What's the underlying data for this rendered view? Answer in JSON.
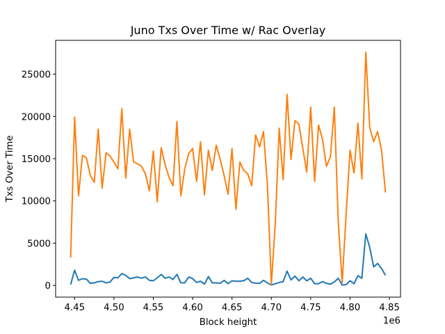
{
  "chart_data": {
    "type": "line",
    "title": "Juno Txs Over Time w/ Rac Overlay",
    "xlabel": "Block height",
    "ylabel": "Txs Over Time",
    "x_offset_label": "1e6",
    "x_ticks": [
      4.45,
      4.5,
      4.55,
      4.6,
      4.65,
      4.7,
      4.75,
      4.8,
      4.85
    ],
    "x_tick_labels": [
      "4.45",
      "4.50",
      "4.55",
      "4.60",
      "4.65",
      "4.70",
      "4.75",
      "4.80",
      "4.85"
    ],
    "y_ticks": [
      0,
      5000,
      10000,
      15000,
      20000,
      25000
    ],
    "y_tick_labels": [
      "0",
      "5000",
      "10000",
      "15000",
      "20000",
      "25000"
    ],
    "xlim": [
      4.4259,
      4.8641
    ],
    "ylim": [
      -1385,
      29000
    ],
    "grid": false,
    "legend": "none",
    "series": [
      {
        "color": "#1f77b4",
        "x": [
          4.445,
          4.45,
          4.455,
          4.46,
          4.465,
          4.47,
          4.475,
          4.48,
          4.485,
          4.49,
          4.495,
          4.5,
          4.505,
          4.51,
          4.515,
          4.52,
          4.525,
          4.53,
          4.535,
          4.54,
          4.545,
          4.55,
          4.555,
          4.56,
          4.565,
          4.57,
          4.575,
          4.58,
          4.585,
          4.59,
          4.595,
          4.6,
          4.605,
          4.61,
          4.615,
          4.62,
          4.625,
          4.63,
          4.635,
          4.64,
          4.645,
          4.65,
          4.655,
          4.66,
          4.665,
          4.67,
          4.675,
          4.68,
          4.685,
          4.69,
          4.695,
          4.7,
          4.705,
          4.71,
          4.715,
          4.72,
          4.725,
          4.73,
          4.735,
          4.74,
          4.745,
          4.75,
          4.755,
          4.76,
          4.765,
          4.77,
          4.775,
          4.78,
          4.785,
          4.79,
          4.795,
          4.8,
          4.805,
          4.81,
          4.815,
          4.82,
          4.825,
          4.83,
          4.835,
          4.84,
          4.845
        ],
        "y": [
          100,
          1800,
          600,
          800,
          750,
          250,
          300,
          450,
          500,
          300,
          400,
          950,
          900,
          1400,
          1200,
          800,
          900,
          1000,
          850,
          1000,
          600,
          550,
          900,
          1300,
          850,
          1000,
          700,
          1300,
          300,
          300,
          1000,
          800,
          350,
          500,
          150,
          1050,
          300,
          300,
          250,
          600,
          200,
          550,
          500,
          500,
          550,
          850,
          350,
          250,
          250,
          600,
          300,
          50,
          200,
          350,
          450,
          1700,
          650,
          1100,
          550,
          1000,
          550,
          850,
          200,
          200,
          450,
          250,
          150,
          400,
          850,
          50,
          100,
          550,
          200,
          1150,
          850,
          6100,
          4500,
          2200,
          2600,
          2000,
          1200
        ]
      },
      {
        "color": "#ff7f0e",
        "x": [
          4.445,
          4.45,
          4.455,
          4.46,
          4.465,
          4.47,
          4.475,
          4.48,
          4.485,
          4.49,
          4.495,
          4.5,
          4.505,
          4.51,
          4.515,
          4.52,
          4.525,
          4.53,
          4.535,
          4.54,
          4.545,
          4.55,
          4.555,
          4.56,
          4.565,
          4.57,
          4.575,
          4.58,
          4.585,
          4.59,
          4.595,
          4.6,
          4.605,
          4.61,
          4.615,
          4.62,
          4.625,
          4.63,
          4.635,
          4.64,
          4.645,
          4.65,
          4.655,
          4.66,
          4.665,
          4.67,
          4.675,
          4.68,
          4.685,
          4.69,
          4.695,
          4.7,
          4.705,
          4.71,
          4.715,
          4.72,
          4.725,
          4.73,
          4.735,
          4.74,
          4.745,
          4.75,
          4.755,
          4.76,
          4.765,
          4.77,
          4.775,
          4.78,
          4.785,
          4.79,
          4.795,
          4.8,
          4.805,
          4.81,
          4.815,
          4.82,
          4.825,
          4.83,
          4.835,
          4.84,
          4.845
        ],
        "y": [
          3300,
          19900,
          10600,
          15400,
          15100,
          13000,
          12200,
          18500,
          11500,
          15700,
          15300,
          14600,
          13800,
          20900,
          12700,
          18500,
          14600,
          14400,
          14100,
          13200,
          11200,
          15900,
          9900,
          16300,
          14300,
          12800,
          11800,
          19400,
          10600,
          13800,
          15600,
          16200,
          12300,
          17000,
          10700,
          16000,
          13600,
          16600,
          14900,
          13000,
          10800,
          16200,
          9000,
          14600,
          13600,
          13200,
          11800,
          17800,
          16400,
          18200,
          11900,
          100,
          7300,
          18600,
          12500,
          22600,
          14900,
          19500,
          19100,
          16200,
          13400,
          21100,
          12300,
          19000,
          17300,
          14100,
          15200,
          21100,
          7600,
          300,
          8400,
          16000,
          13300,
          19200,
          12600,
          27600,
          18700,
          17000,
          18200,
          16000,
          11000
        ]
      }
    ]
  }
}
